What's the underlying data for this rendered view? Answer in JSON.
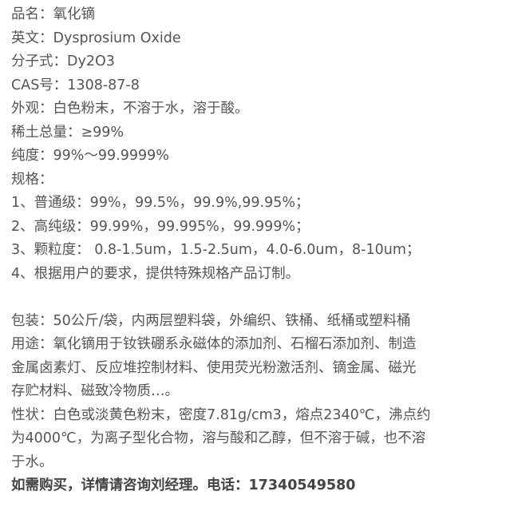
{
  "lines": [
    "品名：氧化镝",
    "英文：Dysprosium Oxide",
    "分子式：Dy2O3",
    "CAS号：1308-87-8",
    "外观：白色粉末，不溶于水，溶于酸。",
    "稀土总量：≥99%",
    "纯度：99%～99.9999%",
    "规格：",
    "1、普通级：99%，99.5%，99.9%,99.95%；",
    "2、高纯级：99.99%，99.995%，99.999%；",
    "3、颗粒度： 0.8-1.5um，1.5-2.5um，4.0-6.0um，8-10um；",
    "4、根据用户的要求，提供特殊规格产品订制。"
  ],
  "packaging": "包装：50公斤/袋，内两层塑料袋，外编织、铁桶、纸桶或塑料桶",
  "usage": [
    "用途：氧化镝用于钕铁硼系永磁体的添加剂、石榴石添加剂、制造",
    "金属卤素灯、反应堆控制材料、使用荧光粉激活剂、镝金属、磁光",
    "存贮材料、磁致冷物质…。"
  ],
  "properties": [
    "性状：白色或淡黄色粉末，密度7.81g/cm3，熔点2340℃，沸点约",
    "为4000℃，为离子型化合物，溶与酸和乙醇，但不溶于碱，也不溶",
    "于水。"
  ],
  "contact": "如需购买，详情请咨询刘经理。电话：17340549580"
}
